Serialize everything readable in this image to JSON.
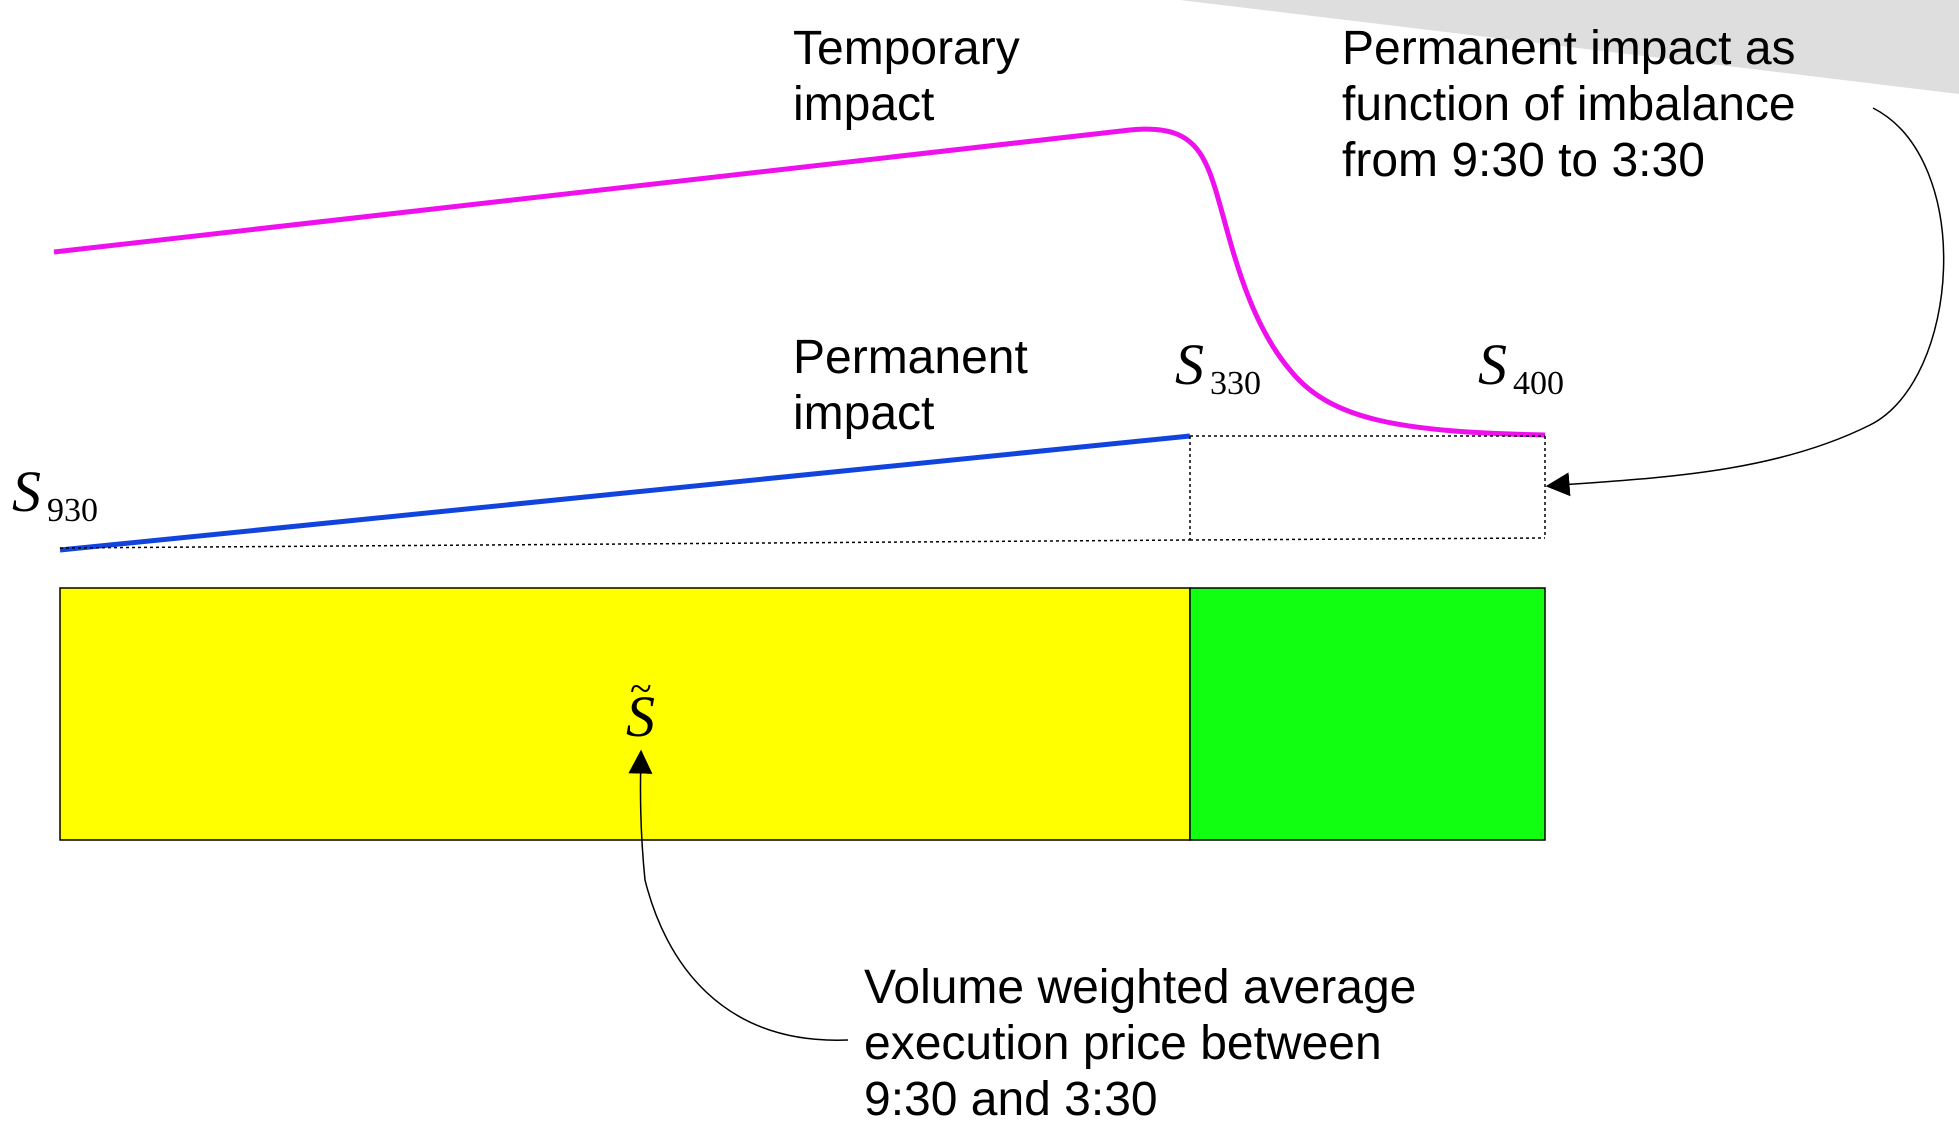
{
  "labels": {
    "temporary_impact": [
      "Temporary",
      "impact"
    ],
    "permanent_impact": [
      "Permanent",
      "impact"
    ],
    "imbalance_note": [
      "Permanent impact as",
      "function of imbalance",
      "from 9:30 to 3:30"
    ],
    "vwap_note": [
      "Volume weighted average",
      "execution price between",
      "9:30 and 3:30"
    ]
  },
  "symbols": {
    "s930": {
      "main": "S",
      "sub": "930"
    },
    "s330": {
      "main": "S",
      "sub": "330"
    },
    "s400": {
      "main": "S",
      "sub": "400"
    },
    "s_tilde": {
      "main": "S",
      "accent": "~"
    }
  },
  "colors": {
    "temporary_curve": "#ee11ee",
    "permanent_line": "#1144dd",
    "vwap_region": "#ffff00",
    "post_region": "#11ff11",
    "background_shape": "#dedede",
    "outline": "#000000"
  }
}
